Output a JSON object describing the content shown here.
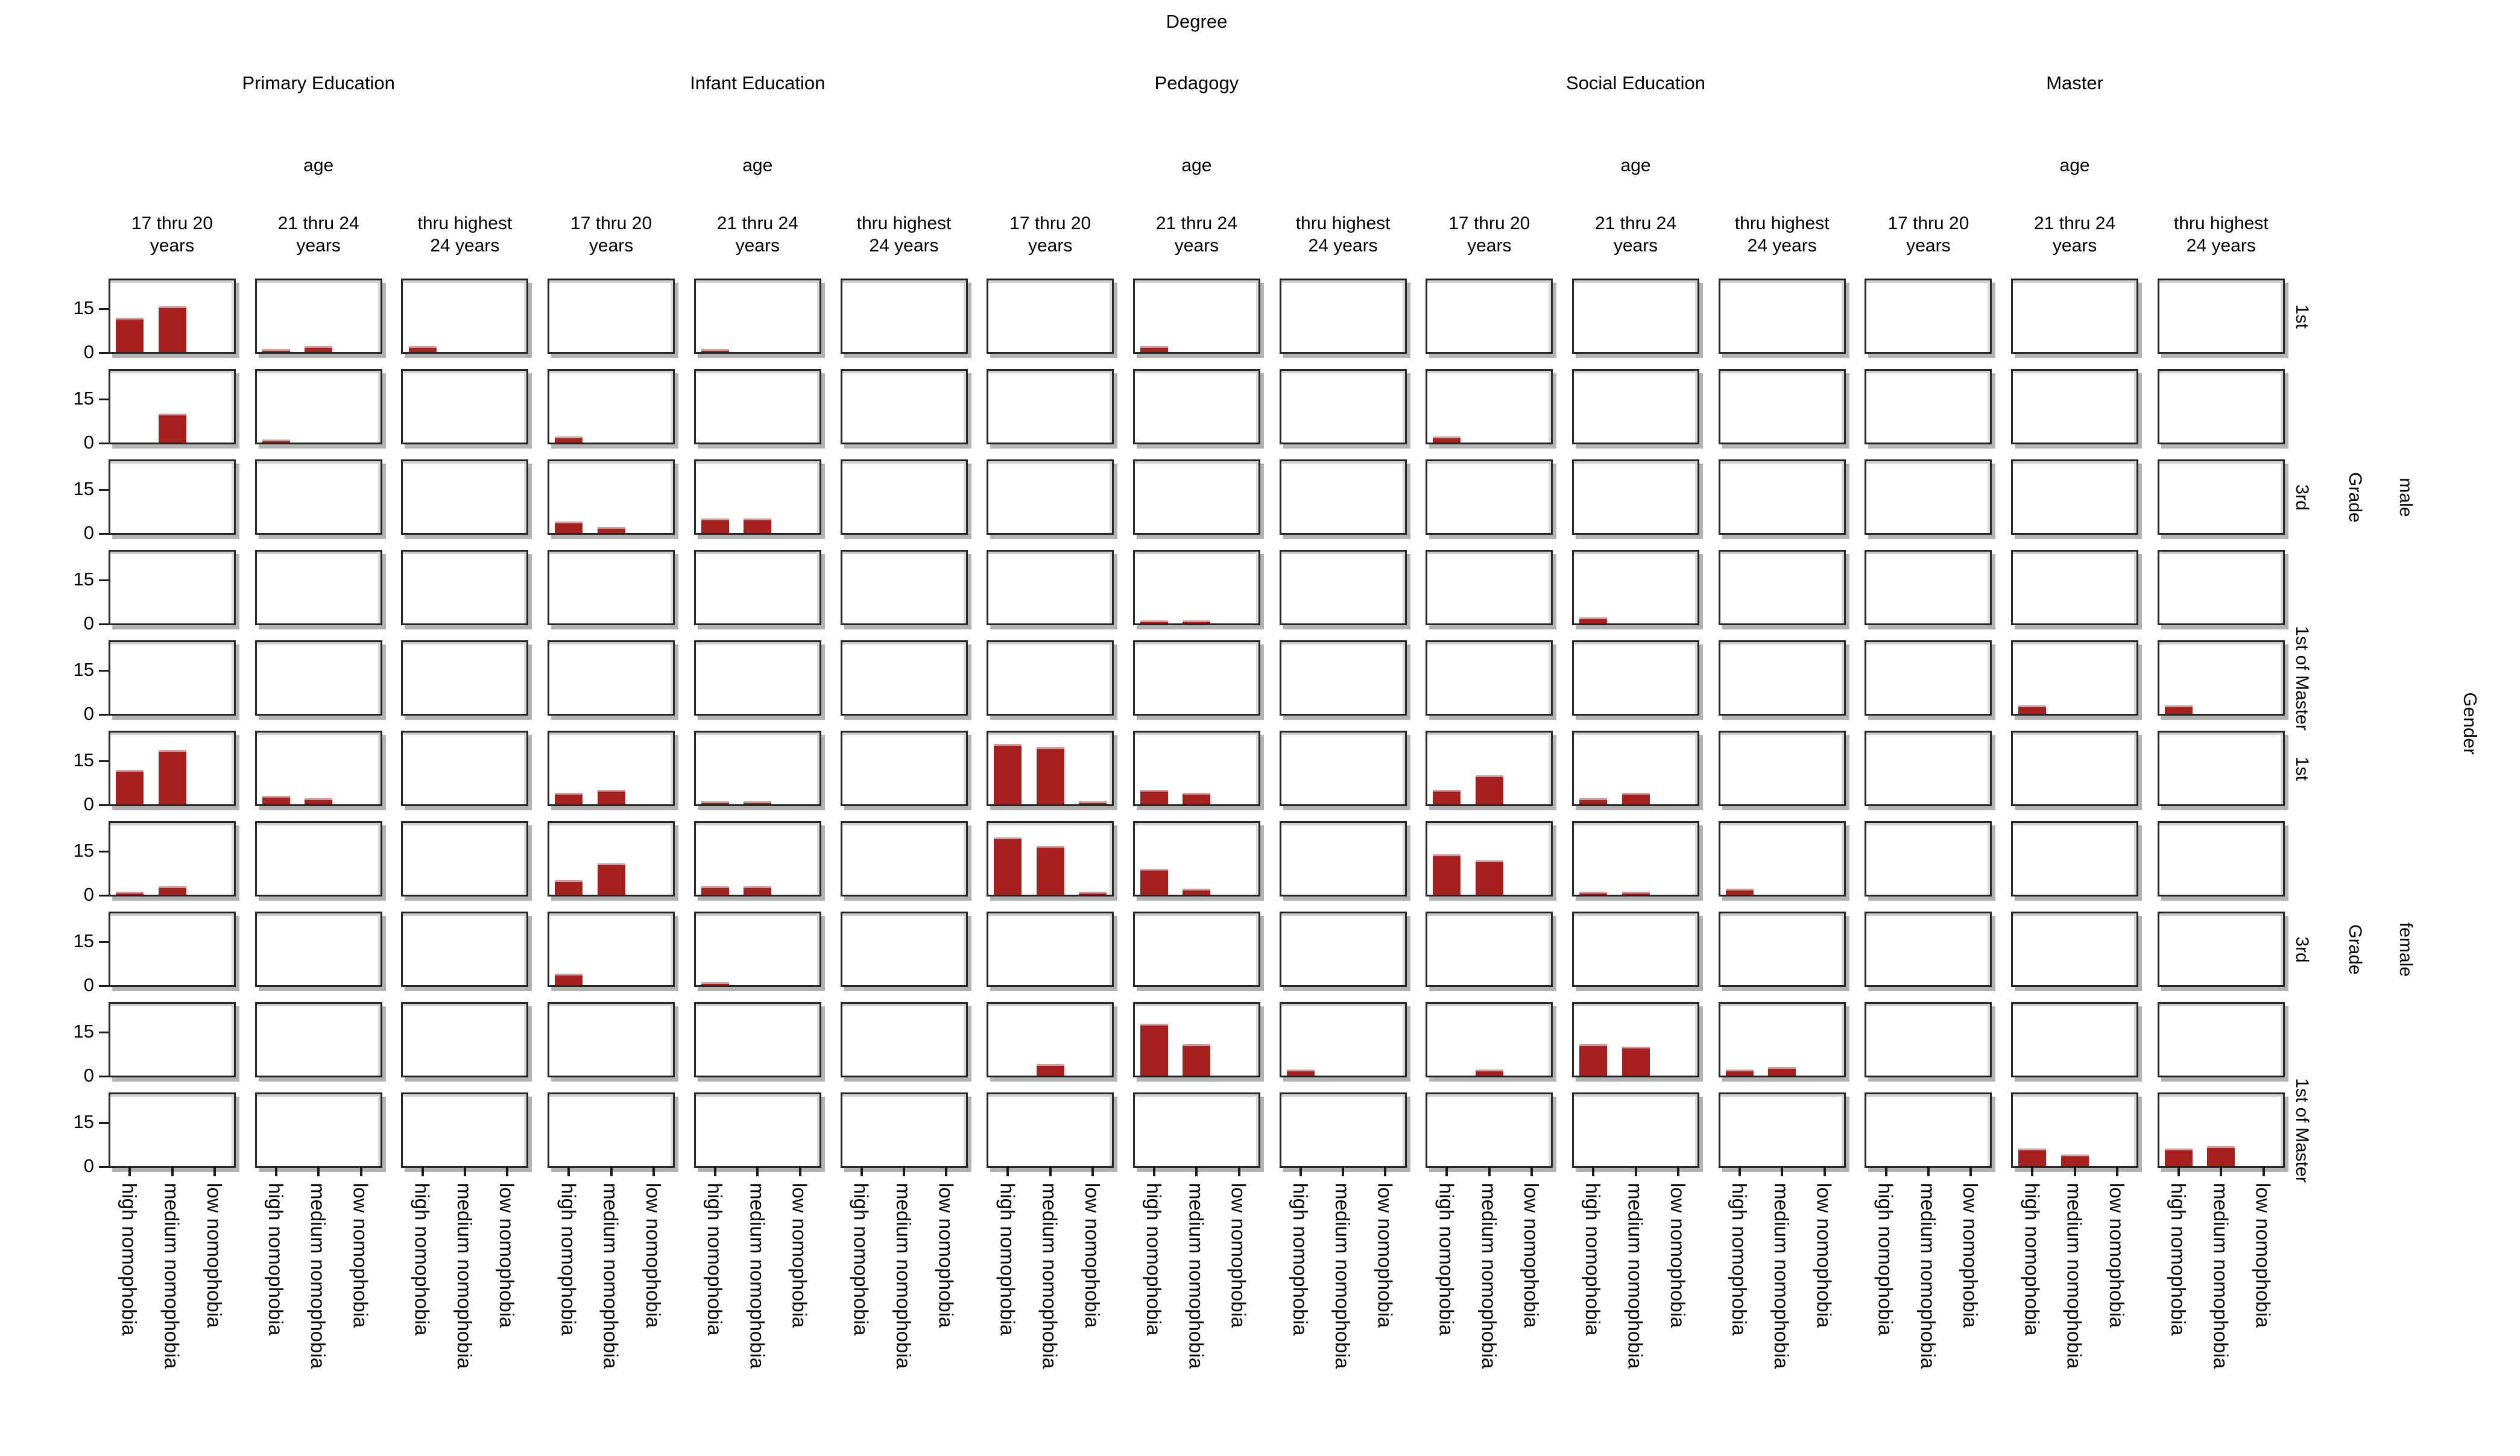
{
  "title": "Degree",
  "colors": {
    "bar_fill": "#a6201f",
    "bar_highlight": "#d59a9b",
    "panel_border": "#262626",
    "panel_shadow": "#b3b3b3",
    "tick": "#1a1a1a",
    "text": "#000000"
  },
  "right_labels": {
    "grade_axis": "Grade",
    "gender_axis": "Gender",
    "male": "male",
    "female": "female"
  },
  "chart_data": {
    "type": "bar",
    "title": "Degree",
    "col_groups": [
      "Primary Education",
      "Infant Education",
      "Pedagogy",
      "Social Education",
      "Master"
    ],
    "col_group_sublabel": "age",
    "age_labels": [
      [
        "17 thru 20",
        "years"
      ],
      [
        "21 thru 24",
        "years"
      ],
      [
        "thru highest",
        "24 years"
      ]
    ],
    "categories": [
      "high nomophobia",
      "medium nomophobia",
      "low nomophobia"
    ],
    "ylabel_ticks": [
      "15",
      "0"
    ],
    "y_ticks": [
      15,
      0
    ],
    "y_max": 25,
    "legend": "none",
    "grid": "off",
    "rows": [
      {
        "gender": "male",
        "label": "1st",
        "values": [
          [
            12,
            16,
            0
          ],
          [
            1,
            2,
            0
          ],
          [
            2,
            0,
            0
          ],
          [
            0,
            0,
            0
          ],
          [
            1,
            0,
            0
          ],
          [
            0,
            0,
            0
          ],
          [
            0,
            0,
            0
          ],
          [
            2,
            0,
            0
          ],
          [
            0,
            0,
            0
          ],
          [
            0,
            0,
            0
          ],
          [
            0,
            0,
            0
          ],
          [
            0,
            0,
            0
          ],
          [
            0,
            0,
            0
          ],
          [
            0,
            0,
            0
          ],
          [
            0,
            0,
            0
          ]
        ]
      },
      {
        "gender": "male",
        "label": "",
        "values": [
          [
            0,
            10,
            0
          ],
          [
            1,
            0,
            0
          ],
          [
            0,
            0,
            0
          ],
          [
            2,
            0,
            0
          ],
          [
            0,
            0,
            0
          ],
          [
            0,
            0,
            0
          ],
          [
            0,
            0,
            0
          ],
          [
            0,
            0,
            0
          ],
          [
            0,
            0,
            0
          ],
          [
            2,
            0,
            0
          ],
          [
            0,
            0,
            0
          ],
          [
            0,
            0,
            0
          ],
          [
            0,
            0,
            0
          ],
          [
            0,
            0,
            0
          ],
          [
            0,
            0,
            0
          ]
        ]
      },
      {
        "gender": "male",
        "label": "3rd",
        "values": [
          [
            0,
            0,
            0
          ],
          [
            0,
            0,
            0
          ],
          [
            0,
            0,
            0
          ],
          [
            4,
            2,
            0
          ],
          [
            5,
            5,
            0
          ],
          [
            0,
            0,
            0
          ],
          [
            0,
            0,
            0
          ],
          [
            0,
            0,
            0
          ],
          [
            0,
            0,
            0
          ],
          [
            0,
            0,
            0
          ],
          [
            0,
            0,
            0
          ],
          [
            0,
            0,
            0
          ],
          [
            0,
            0,
            0
          ],
          [
            0,
            0,
            0
          ],
          [
            0,
            0,
            0
          ]
        ]
      },
      {
        "gender": "male",
        "label": "",
        "values": [
          [
            0,
            0,
            0
          ],
          [
            0,
            0,
            0
          ],
          [
            0,
            0,
            0
          ],
          [
            0,
            0,
            0
          ],
          [
            0,
            0,
            0
          ],
          [
            0,
            0,
            0
          ],
          [
            0,
            0,
            0
          ],
          [
            1,
            1,
            0
          ],
          [
            0,
            0,
            0
          ],
          [
            0,
            0,
            0
          ],
          [
            2,
            0,
            0
          ],
          [
            0,
            0,
            0
          ],
          [
            0,
            0,
            0
          ],
          [
            0,
            0,
            0
          ],
          [
            0,
            0,
            0
          ]
        ]
      },
      {
        "gender": "male",
        "label": "1st of Master",
        "values": [
          [
            0,
            0,
            0
          ],
          [
            0,
            0,
            0
          ],
          [
            0,
            0,
            0
          ],
          [
            0,
            0,
            0
          ],
          [
            0,
            0,
            0
          ],
          [
            0,
            0,
            0
          ],
          [
            0,
            0,
            0
          ],
          [
            0,
            0,
            0
          ],
          [
            0,
            0,
            0
          ],
          [
            0,
            0,
            0
          ],
          [
            0,
            0,
            0
          ],
          [
            0,
            0,
            0
          ],
          [
            0,
            0,
            0
          ],
          [
            3,
            0,
            0
          ],
          [
            3,
            0,
            0
          ]
        ]
      },
      {
        "gender": "female",
        "label": "1st",
        "values": [
          [
            12,
            19,
            0
          ],
          [
            3,
            2,
            0
          ],
          [
            0,
            0,
            0
          ],
          [
            4,
            5,
            0
          ],
          [
            1,
            1,
            0
          ],
          [
            0,
            0,
            0
          ],
          [
            21,
            20,
            1
          ],
          [
            5,
            4,
            0
          ],
          [
            0,
            0,
            0
          ],
          [
            5,
            10,
            0
          ],
          [
            2,
            4,
            0
          ],
          [
            0,
            0,
            0
          ],
          [
            0,
            0,
            0
          ],
          [
            0,
            0,
            0
          ],
          [
            0,
            0,
            0
          ]
        ]
      },
      {
        "gender": "female",
        "label": "",
        "values": [
          [
            1,
            3,
            0
          ],
          [
            0,
            0,
            0
          ],
          [
            0,
            0,
            0
          ],
          [
            5,
            11,
            0
          ],
          [
            3,
            3,
            0
          ],
          [
            0,
            0,
            0
          ],
          [
            20,
            17,
            1
          ],
          [
            9,
            2,
            0
          ],
          [
            0,
            0,
            0
          ],
          [
            14,
            12,
            0
          ],
          [
            1,
            1,
            0
          ],
          [
            2,
            0,
            0
          ],
          [
            0,
            0,
            0
          ],
          [
            0,
            0,
            0
          ],
          [
            0,
            0,
            0
          ]
        ]
      },
      {
        "gender": "female",
        "label": "3rd",
        "values": [
          [
            0,
            0,
            0
          ],
          [
            0,
            0,
            0
          ],
          [
            0,
            0,
            0
          ],
          [
            4,
            0,
            0
          ],
          [
            1,
            0,
            0
          ],
          [
            0,
            0,
            0
          ],
          [
            0,
            0,
            0
          ],
          [
            0,
            0,
            0
          ],
          [
            0,
            0,
            0
          ],
          [
            0,
            0,
            0
          ],
          [
            0,
            0,
            0
          ],
          [
            0,
            0,
            0
          ],
          [
            0,
            0,
            0
          ],
          [
            0,
            0,
            0
          ],
          [
            0,
            0,
            0
          ]
        ]
      },
      {
        "gender": "female",
        "label": "",
        "values": [
          [
            0,
            0,
            0
          ],
          [
            0,
            0,
            0
          ],
          [
            0,
            0,
            0
          ],
          [
            0,
            0,
            0
          ],
          [
            0,
            0,
            0
          ],
          [
            0,
            0,
            0
          ],
          [
            0,
            4,
            0
          ],
          [
            18,
            11,
            0
          ],
          [
            2,
            0,
            0
          ],
          [
            0,
            2,
            0
          ],
          [
            11,
            10,
            0
          ],
          [
            2,
            3,
            0
          ],
          [
            0,
            0,
            0
          ],
          [
            0,
            0,
            0
          ],
          [
            0,
            0,
            0
          ]
        ]
      },
      {
        "gender": "female",
        "label": "1st of Master",
        "values": [
          [
            0,
            0,
            0
          ],
          [
            0,
            0,
            0
          ],
          [
            0,
            0,
            0
          ],
          [
            0,
            0,
            0
          ],
          [
            0,
            0,
            0
          ],
          [
            0,
            0,
            0
          ],
          [
            0,
            0,
            0
          ],
          [
            0,
            0,
            0
          ],
          [
            0,
            0,
            0
          ],
          [
            0,
            0,
            0
          ],
          [
            0,
            0,
            0
          ],
          [
            0,
            0,
            0
          ],
          [
            0,
            0,
            0
          ],
          [
            6,
            4,
            0
          ],
          [
            6,
            7,
            0
          ]
        ]
      }
    ]
  }
}
